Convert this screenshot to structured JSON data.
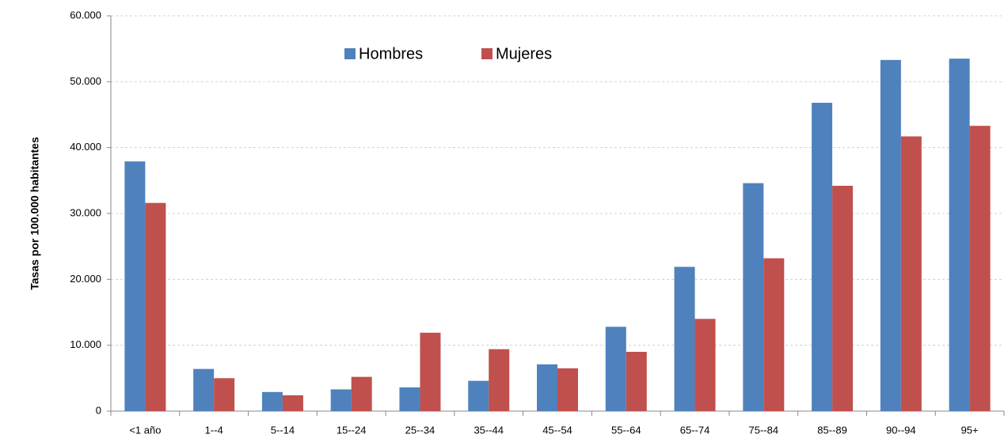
{
  "chart_data": {
    "type": "bar",
    "y_label": "Tasas por 100.000 habitantes",
    "categories": [
      "<1 año",
      "1--4",
      "5--14",
      "15--24",
      "25--34",
      "35--44",
      "45--54",
      "55--64",
      "65--74",
      "75--84",
      "85--89",
      "90--94",
      "95+"
    ],
    "series": [
      {
        "name": "Hombres",
        "color": "#4f81bd",
        "values": [
          37900,
          6400,
          2900,
          3300,
          3600,
          4600,
          7100,
          12800,
          21900,
          34600,
          46800,
          53300,
          53500
        ]
      },
      {
        "name": "Mujeres",
        "color": "#c0504d",
        "values": [
          31600,
          5000,
          2400,
          5200,
          11900,
          9400,
          6500,
          9000,
          14000,
          23200,
          34200,
          41700,
          43300
        ]
      }
    ],
    "ylim": [
      0,
      60000
    ],
    "yticks": [
      0,
      {
        "value": 10000,
        "label": "10.000"
      },
      {
        "value": 20000,
        "label": "20.000"
      },
      {
        "value": 30000,
        "label": "30.000"
      },
      {
        "value": 40000,
        "label": "40.000"
      },
      {
        "value": 50000,
        "label": "50.000"
      },
      {
        "value": 60000,
        "label": "60.000"
      }
    ],
    "grid": true
  }
}
